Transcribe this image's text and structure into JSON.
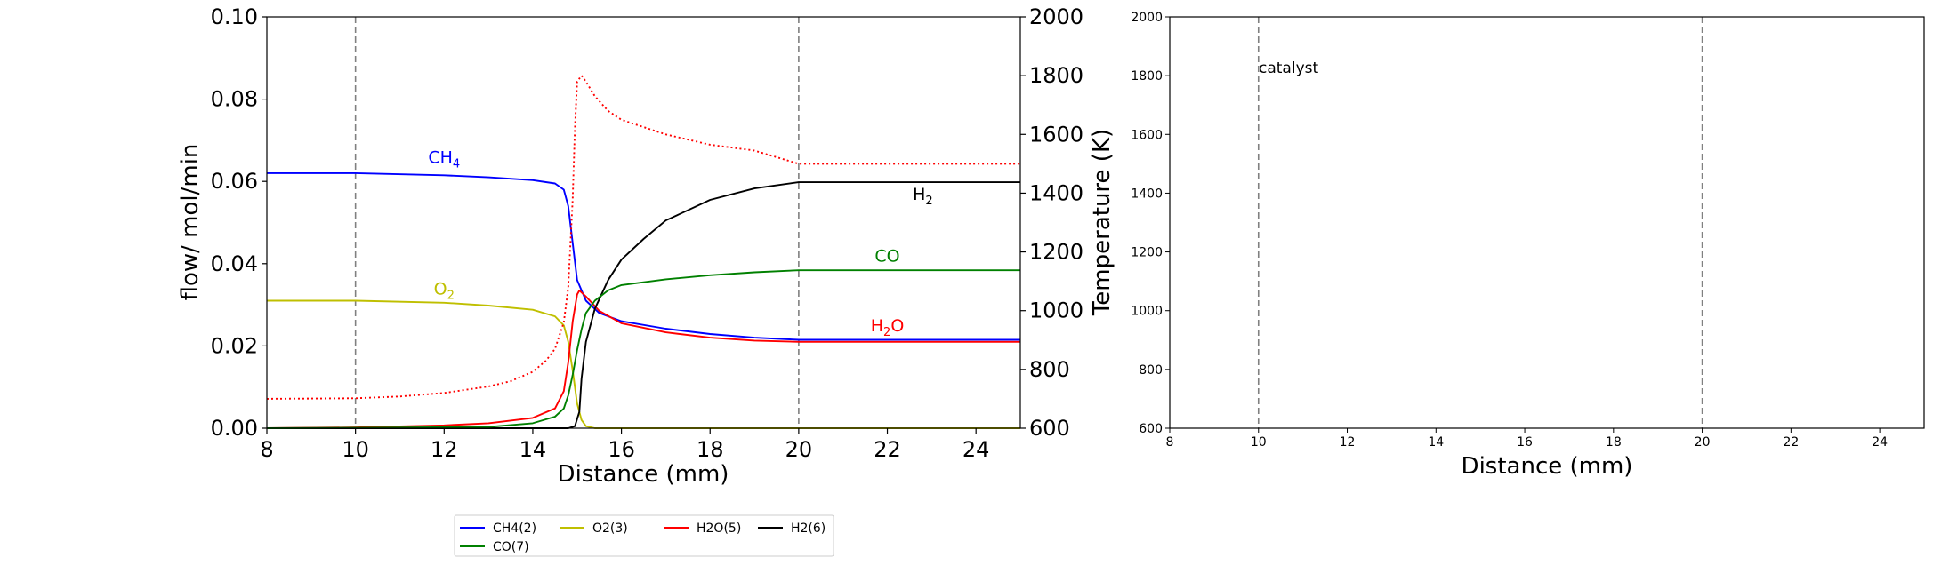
{
  "colors": {
    "CH4": "#0000ff",
    "O2": "#bfbf00",
    "H2O": "#ff0000",
    "H2": "#000000",
    "CO": "#008000",
    "temperature": "#ff0000",
    "catalyst_boundary": "#808080"
  },
  "chart_data": [
    {
      "type": "line",
      "xlabel": "Distance (mm)",
      "ylabel": "flow/ mol/min",
      "y2label": "Temperature (K)",
      "xlim": [
        8,
        25
      ],
      "ylim": [
        0,
        0.1
      ],
      "y2lim": [
        600,
        2000
      ],
      "xticks": [
        "8",
        "10",
        "12",
        "14",
        "16",
        "18",
        "20",
        "22",
        "24"
      ],
      "yticks": [
        "0.00",
        "0.02",
        "0.04",
        "0.06",
        "0.08",
        "0.10"
      ],
      "y2ticks": [
        "600",
        "800",
        "1000",
        "1200",
        "1400",
        "1600",
        "1800",
        "2000"
      ],
      "catalyst_lines": [
        10,
        20
      ],
      "legend_position": "bottom-center",
      "series": [
        {
          "key": "CH4",
          "name": "CH4(2)",
          "x": [
            8,
            10,
            12,
            13,
            14,
            14.5,
            14.7,
            14.8,
            14.9,
            15.0,
            15.2,
            15.5,
            16,
            17,
            18,
            19,
            20,
            25
          ],
          "values": [
            0.062,
            0.062,
            0.0615,
            0.061,
            0.0603,
            0.0595,
            0.058,
            0.054,
            0.045,
            0.036,
            0.031,
            0.028,
            0.026,
            0.0242,
            0.0229,
            0.022,
            0.0215,
            0.0215
          ]
        },
        {
          "key": "O2",
          "name": "O2(3)",
          "x": [
            8,
            10,
            12,
            13,
            14,
            14.5,
            14.7,
            14.8,
            14.9,
            15.0,
            15.1,
            15.2,
            15.4,
            16,
            25
          ],
          "values": [
            0.031,
            0.031,
            0.0305,
            0.0298,
            0.0288,
            0.0272,
            0.025,
            0.021,
            0.014,
            0.006,
            0.002,
            0.0005,
            0.0,
            0.0,
            0.0
          ]
        },
        {
          "key": "H2O",
          "name": "H2O(5)",
          "x": [
            8,
            10,
            12,
            13,
            14,
            14.5,
            14.7,
            14.8,
            14.9,
            15.0,
            15.05,
            15.2,
            15.5,
            16,
            17,
            18,
            19,
            20,
            25
          ],
          "values": [
            0.0,
            0.0002,
            0.0007,
            0.0012,
            0.0025,
            0.0048,
            0.009,
            0.016,
            0.026,
            0.0325,
            0.0335,
            0.032,
            0.0285,
            0.0255,
            0.0233,
            0.022,
            0.0213,
            0.021,
            0.021
          ]
        },
        {
          "key": "H2",
          "name": "H2(6)",
          "x": [
            8,
            14.8,
            14.95,
            15.05,
            15.1,
            15.2,
            15.4,
            15.7,
            16,
            16.5,
            17,
            18,
            19,
            20,
            25
          ],
          "values": [
            0.0,
            0.0,
            0.0005,
            0.004,
            0.012,
            0.021,
            0.029,
            0.036,
            0.041,
            0.046,
            0.0505,
            0.0555,
            0.0583,
            0.0598,
            0.0598
          ]
        },
        {
          "key": "CO",
          "name": "CO(7)",
          "x": [
            8,
            13,
            14,
            14.5,
            14.7,
            14.8,
            14.9,
            15.0,
            15.1,
            15.2,
            15.4,
            15.7,
            16,
            17,
            18,
            19,
            20,
            25
          ],
          "values": [
            0.0,
            0.0003,
            0.0012,
            0.0028,
            0.0048,
            0.008,
            0.013,
            0.019,
            0.024,
            0.028,
            0.031,
            0.0335,
            0.0348,
            0.0362,
            0.0372,
            0.0379,
            0.0384,
            0.0384
          ]
        },
        {
          "key": "temperature",
          "name": "",
          "axis": "y2",
          "x": [
            8,
            10,
            11,
            12,
            13,
            13.5,
            14,
            14.3,
            14.5,
            14.7,
            14.8,
            14.9,
            14.95,
            15.0,
            15.1,
            15.2,
            15.4,
            15.7,
            16,
            17,
            18,
            19,
            20,
            25
          ],
          "values": [
            700,
            702,
            708,
            720,
            742,
            760,
            792,
            830,
            870,
            960,
            1080,
            1380,
            1620,
            1780,
            1800,
            1780,
            1730,
            1680,
            1650,
            1600,
            1565,
            1545,
            1500,
            1500
          ]
        }
      ],
      "annotations": [
        {
          "key": "CH4",
          "base": "CH",
          "sub": "4",
          "x": 12.0,
          "y": 0.0645
        },
        {
          "key": "H2",
          "base": "H",
          "sub": "2",
          "x": 22.8,
          "y": 0.0555
        },
        {
          "key": "CO",
          "base": "CO",
          "sub": "",
          "x": 22.0,
          "y": 0.0405
        },
        {
          "key": "O2",
          "base": "O",
          "sub": "2",
          "x": 12.0,
          "y": 0.0325
        },
        {
          "key": "H2O",
          "base": "H",
          "sub": "2",
          "tail": "O",
          "x": 22.0,
          "y": 0.0235
        }
      ]
    },
    {
      "type": "line",
      "xlabel": "Distance (mm)",
      "ylabel": "",
      "xlim": [
        8,
        25
      ],
      "ylim": [
        600,
        2000
      ],
      "xticks": [
        "8",
        "10",
        "12",
        "14",
        "16",
        "18",
        "20",
        "22",
        "24"
      ],
      "yticks": [
        "600",
        "800",
        "1000",
        "1200",
        "1400",
        "1600",
        "1800",
        "2000"
      ],
      "catalyst_lines": [
        10,
        20
      ],
      "annotation": "catalyst",
      "series": []
    }
  ]
}
